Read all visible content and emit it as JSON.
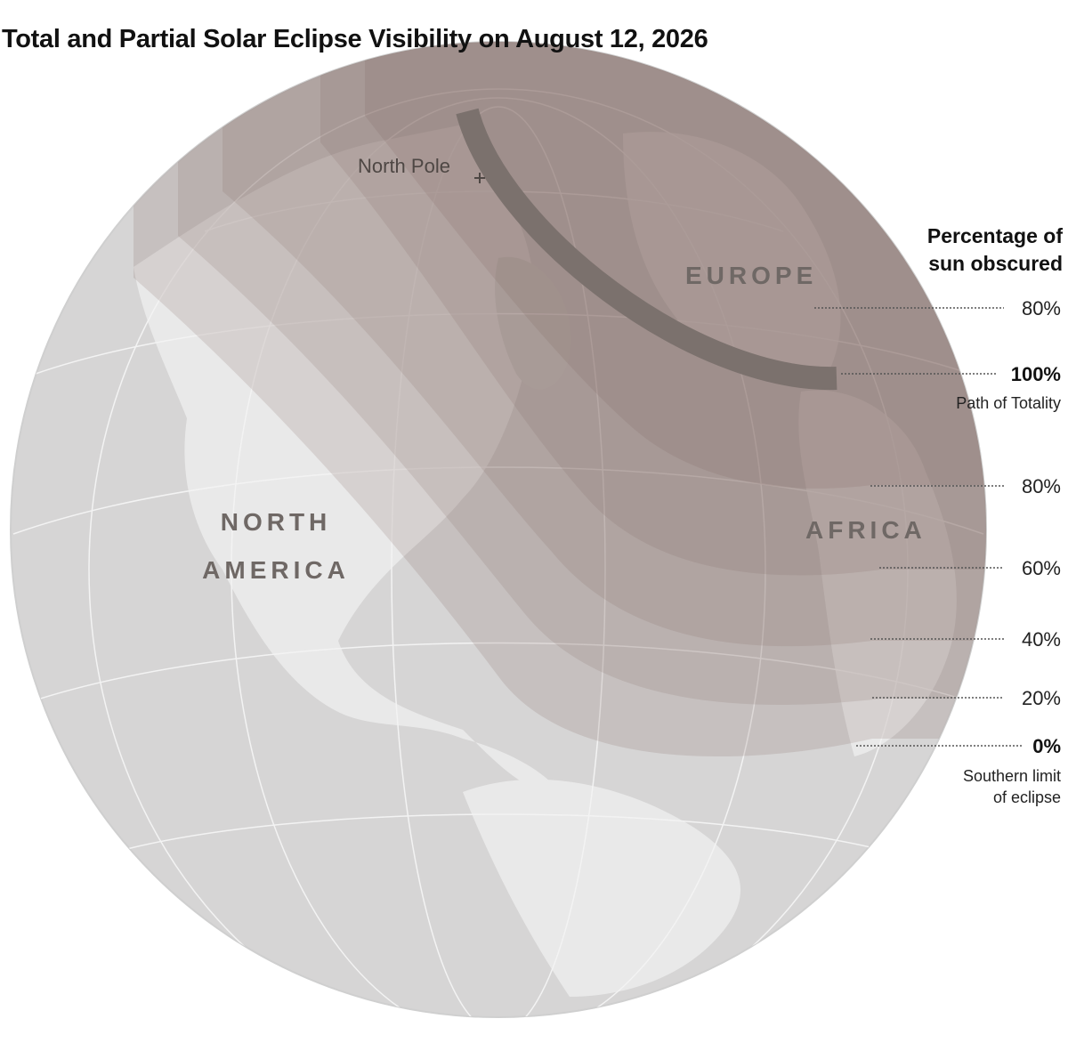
{
  "title": "Total and Partial Solar Eclipse Visibility on August 12, 2026",
  "labels": {
    "north_pole": "North Pole",
    "europe": "EUROPE",
    "north_america": "NORTH AMERICA",
    "africa": "AFRICA"
  },
  "legend": {
    "title": "Percentage of sun obscured",
    "items": [
      {
        "label": "80%"
      },
      {
        "label": "100%",
        "note": "Path of Totality"
      },
      {
        "label": "80%"
      },
      {
        "label": "60%"
      },
      {
        "label": "40%"
      },
      {
        "label": "20%"
      },
      {
        "label": "0%",
        "note": "Southern limit of eclipse"
      }
    ]
  }
}
